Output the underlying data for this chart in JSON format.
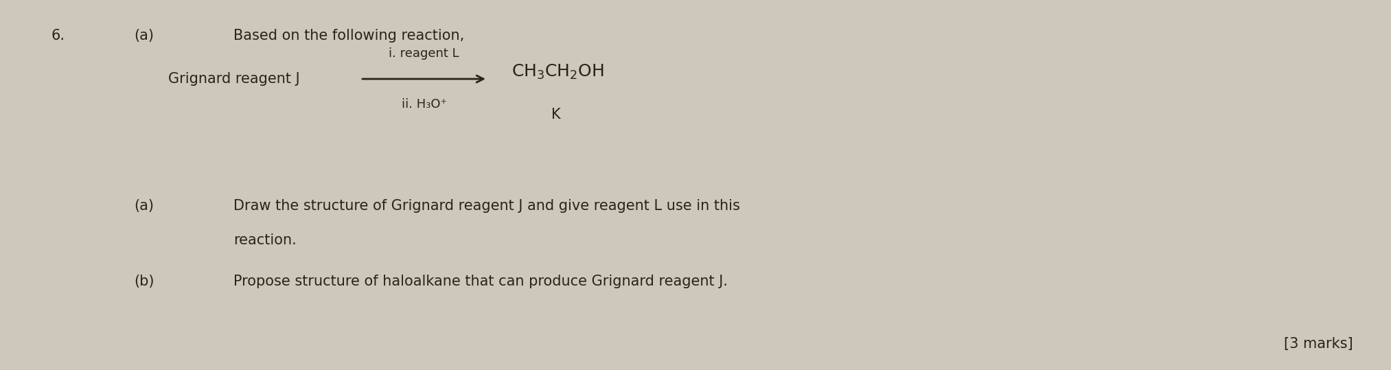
{
  "background_color": "#cec8bc",
  "fig_width": 20.26,
  "fig_height": 5.39,
  "dpi": 100,
  "question_number": "6.",
  "question_label_top": "(a)",
  "intro_text": "Based on the following reaction,",
  "reaction_left": "Grignard reagent J",
  "arrow_label_1": "i. reagent L",
  "arrow_label_2": "ii. H₃O⁺",
  "product_text": "CH$_3$CH$_2$OH",
  "product_label": "K",
  "sub_a_label": "(a)",
  "sub_a_line1": "Draw the structure of Grignard reagent J and give reagent L use in this",
  "sub_a_line2": "reaction.",
  "sub_b_label": "(b)",
  "sub_b_text": "Propose structure of haloalkane that can produce Grignard reagent J.",
  "marks_text": "[3 marks]",
  "font_size": 15,
  "font_size_sm": 13,
  "font_size_chem": 18,
  "text_color": "#2a2318"
}
